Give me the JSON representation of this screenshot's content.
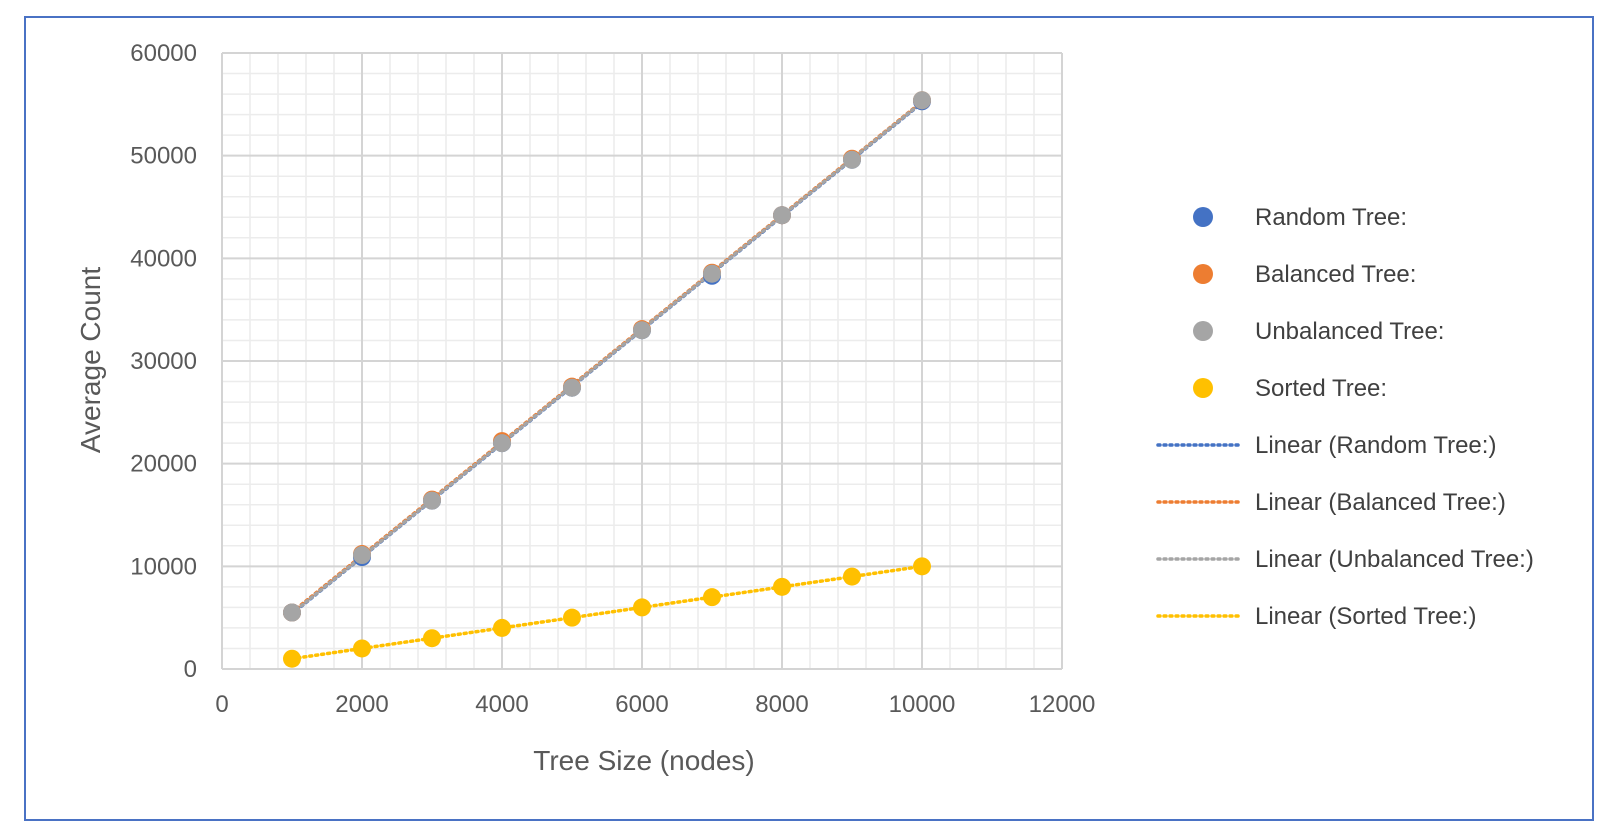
{
  "chart_data": {
    "type": "scatter",
    "title": "",
    "xlabel": "Tree Size (nodes)",
    "ylabel": "Average Count",
    "xlim": [
      0,
      12000
    ],
    "ylim": [
      0,
      60000
    ],
    "x_ticks": [
      0,
      2000,
      4000,
      6000,
      8000,
      10000,
      12000
    ],
    "y_ticks": [
      0,
      10000,
      20000,
      30000,
      40000,
      50000,
      60000
    ],
    "grid": true,
    "legend_position": "right",
    "x": [
      1000,
      2000,
      3000,
      4000,
      5000,
      6000,
      7000,
      8000,
      9000,
      10000
    ],
    "series": [
      {
        "name": "Random Tree:",
        "color": "#4472c4",
        "values": [
          5500,
          10900,
          16400,
          22000,
          27400,
          33000,
          38300,
          44200,
          49600,
          55300
        ]
      },
      {
        "name": "Balanced Tree:",
        "color": "#ed7d31",
        "values": [
          5500,
          11200,
          16500,
          22200,
          27500,
          33100,
          38600,
          44200,
          49700,
          55400
        ]
      },
      {
        "name": "Unbalanced Tree:",
        "color": "#a5a5a5",
        "values": [
          5500,
          11100,
          16400,
          22000,
          27400,
          33000,
          38500,
          44200,
          49600,
          55400
        ]
      },
      {
        "name": "Sorted Tree:",
        "color": "#ffc000",
        "values": [
          1000,
          2000,
          3000,
          4000,
          5000,
          6000,
          7000,
          8000,
          9000,
          10000
        ]
      }
    ],
    "trendlines": [
      {
        "name": "Linear (Random Tree:)",
        "color": "#4472c4",
        "series": 0
      },
      {
        "name": "Linear (Balanced Tree:)",
        "color": "#ed7d31",
        "series": 1
      },
      {
        "name": "Linear (Unbalanced Tree:)",
        "color": "#a5a5a5",
        "series": 2
      },
      {
        "name": "Linear (Sorted Tree:)",
        "color": "#ffc000",
        "series": 3
      }
    ]
  }
}
